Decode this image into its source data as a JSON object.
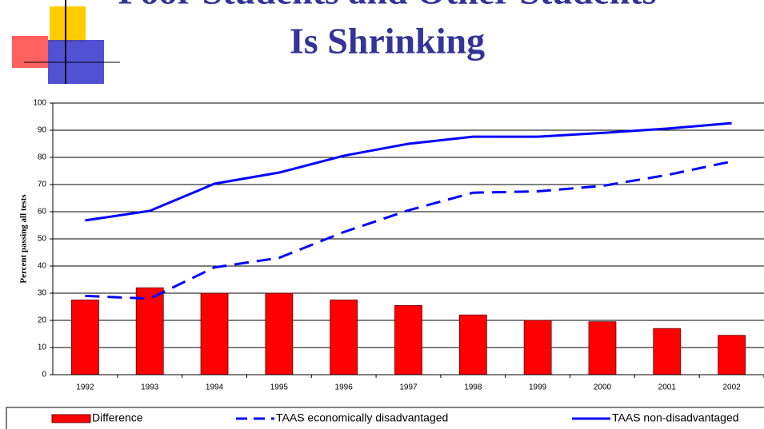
{
  "chart_data": {
    "type": "bar-line",
    "title": [
      "Poor Students and Other Students",
      "Is Shrinking"
    ],
    "y_label": "Percent passing all tests",
    "categories": [
      "1992",
      "1993",
      "1994",
      "1995",
      "1996",
      "1997",
      "1998",
      "1999",
      "2000",
      "2001",
      "2002"
    ],
    "ylim": [
      0,
      100
    ],
    "yticks": [
      0,
      10,
      20,
      30,
      40,
      50,
      60,
      70,
      80,
      90,
      100
    ],
    "grid": true,
    "series": [
      {
        "name": "Difference",
        "type": "bar",
        "color": "#ff0000",
        "values": [
          27.5,
          32,
          30,
          30,
          27.5,
          25.5,
          22,
          20,
          19.5,
          17,
          14.5
        ]
      },
      {
        "name": "TAAS economically disadvantaged",
        "type": "line",
        "dash": true,
        "color": "#0000ff",
        "values": [
          29,
          28,
          39.5,
          43,
          52.5,
          60.5,
          67,
          67.5,
          69.5,
          73.5,
          78.5
        ]
      },
      {
        "name": "TAAS non-disadvantaged",
        "type": "line",
        "dash": false,
        "color": "#0000ff",
        "values": [
          56.8,
          60.3,
          70.3,
          74.4,
          80.6,
          85,
          87.6,
          87.6,
          89,
          90.6,
          92.6
        ]
      }
    ]
  }
}
